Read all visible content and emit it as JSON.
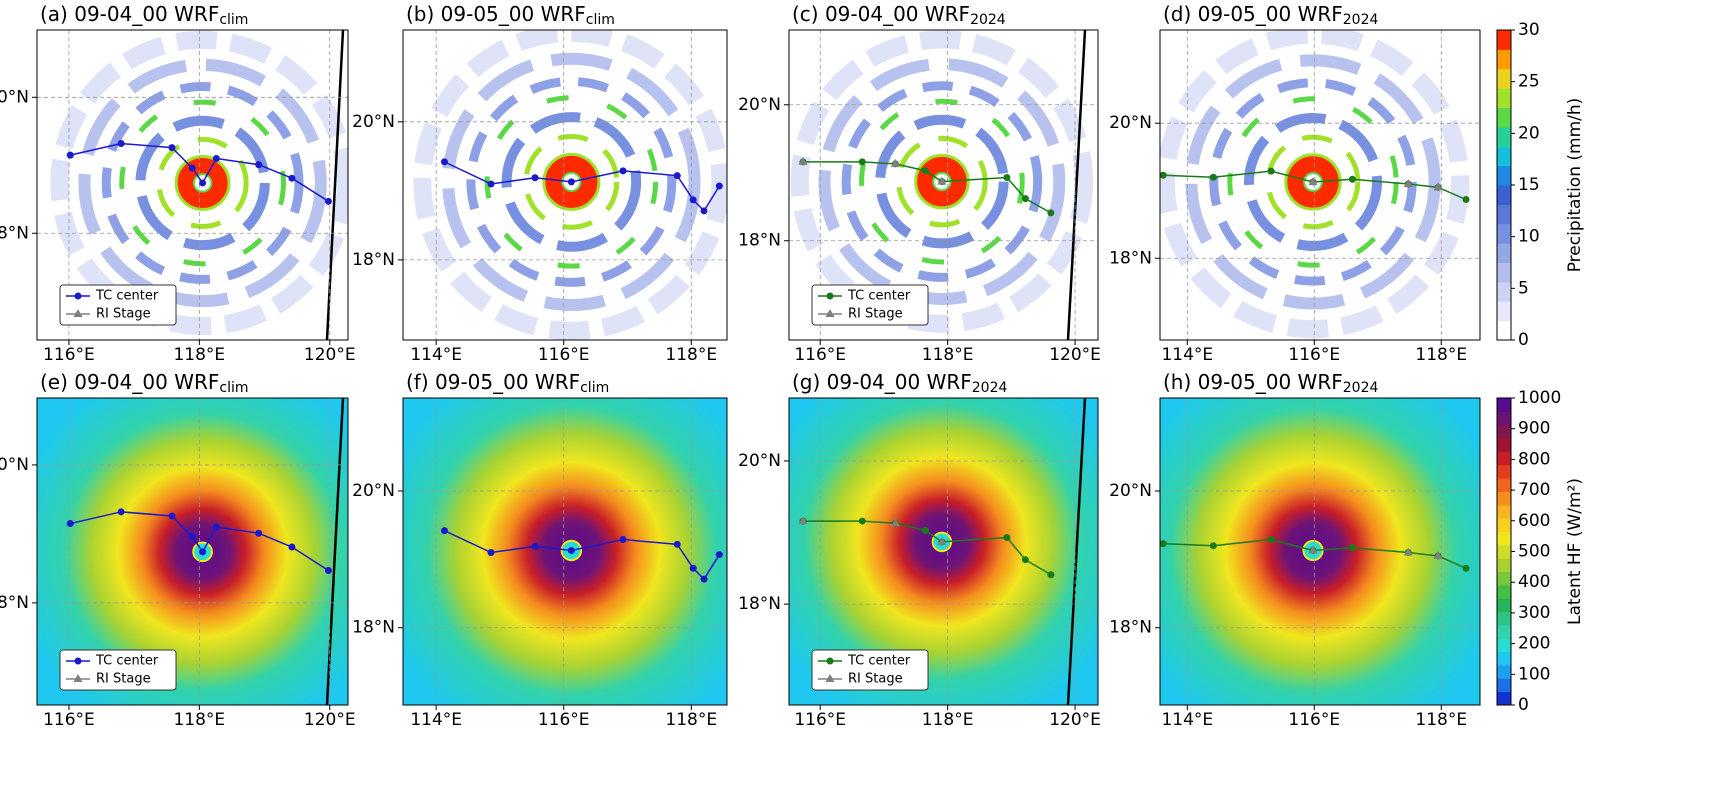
{
  "chart_data": [
    {
      "type": "map",
      "field": "precipitation",
      "title": "(a) 09-04_00 WRF",
      "title_sub": "clim",
      "xlim": [
        115.51,
        120.28
      ],
      "ylim": [
        16.43,
        20.99
      ],
      "xticks": [
        {
          "value": 116,
          "label": "116°E"
        },
        {
          "value": 118,
          "label": "118°E"
        },
        {
          "value": 120,
          "label": "120°E"
        }
      ],
      "yticks": [
        {
          "value": 18,
          "label": "18°N"
        },
        {
          "value": 20,
          "label": "20°N"
        }
      ],
      "grid": true,
      "legend": "lower left",
      "series": [
        {
          "name": "TC center",
          "color": "#1a1acc",
          "marker": "circle",
          "x": [
            116.02,
            116.8,
            117.58,
            117.89,
            118.05,
            118.26,
            118.91,
            119.42,
            119.98
          ],
          "values": [
            19.15,
            19.32,
            19.26,
            18.96,
            18.74,
            19.1,
            19.01,
            18.81,
            18.47
          ]
        },
        {
          "name": "RI Stage",
          "color": "#808080",
          "marker": "triangle",
          "x": [],
          "values": []
        }
      ]
    },
    {
      "type": "map",
      "field": "precipitation",
      "title": "(b) 09-05_00 WRF",
      "title_sub": "clim",
      "xlim": [
        113.48,
        118.56
      ],
      "ylim": [
        16.84,
        21.33
      ],
      "xticks": [
        {
          "value": 114,
          "label": "114°E"
        },
        {
          "value": 116,
          "label": "116°E"
        },
        {
          "value": 118,
          "label": "118°E"
        }
      ],
      "yticks": [
        {
          "value": 18,
          "label": "18°N"
        },
        {
          "value": 20,
          "label": "20°N"
        }
      ],
      "grid": true,
      "series": [
        {
          "color": "#1a1acc",
          "marker": "circle",
          "x": [
            114.13,
            114.86,
            115.55,
            116.12,
            116.93,
            117.78,
            118.03,
            118.2,
            118.44
          ],
          "values": [
            19.42,
            19.1,
            19.19,
            19.13,
            19.29,
            19.22,
            18.87,
            18.71,
            19.07
          ]
        }
      ]
    },
    {
      "type": "map",
      "field": "precipitation",
      "title": "(c) 09-04_00 WRF",
      "title_sub": "2024",
      "xlim": [
        115.51,
        120.36
      ],
      "ylim": [
        16.54,
        21.1
      ],
      "xticks": [
        {
          "value": 116,
          "label": "116°E"
        },
        {
          "value": 118,
          "label": "118°E"
        },
        {
          "value": 120,
          "label": "120°E"
        }
      ],
      "yticks": [
        {
          "value": 18,
          "label": "18°N"
        },
        {
          "value": 20,
          "label": "20°N"
        }
      ],
      "grid": true,
      "legend": "lower left",
      "series": [
        {
          "name": "TC center",
          "color": "#1a7a1a",
          "marker": "circle",
          "x": [
            115.73,
            116.66,
            117.18,
            117.65,
            117.91,
            118.93,
            119.22,
            119.62
          ],
          "values": [
            19.16,
            19.16,
            19.13,
            19.03,
            18.87,
            18.93,
            18.62,
            18.41
          ]
        },
        {
          "name": "RI Stage",
          "color": "#808080",
          "marker": "triangle",
          "x": [
            115.73,
            117.18,
            117.91
          ],
          "values": [
            19.16,
            19.13,
            18.87
          ]
        }
      ]
    },
    {
      "type": "map",
      "field": "precipitation",
      "title": "(d) 09-05_00 WRF",
      "title_sub": "2024",
      "xlim": [
        113.57,
        118.61
      ],
      "ylim": [
        16.79,
        21.38
      ],
      "xticks": [
        {
          "value": 114,
          "label": "114°E"
        },
        {
          "value": 116,
          "label": "116°E"
        },
        {
          "value": 118,
          "label": "118°E"
        }
      ],
      "yticks": [
        {
          "value": 18,
          "label": "18°N"
        },
        {
          "value": 20,
          "label": "20°N"
        }
      ],
      "grid": true,
      "series": [
        {
          "color": "#1a7a1a",
          "marker": "circle",
          "x": [
            113.62,
            114.41,
            115.32,
            115.98,
            116.6,
            117.48,
            117.95,
            118.39
          ],
          "values": [
            19.23,
            19.2,
            19.29,
            19.13,
            19.17,
            19.1,
            19.05,
            18.87
          ]
        },
        {
          "color": "#808080",
          "marker": "triangle",
          "x": [
            115.98,
            117.48,
            117.95
          ],
          "values": [
            19.13,
            19.1,
            19.05
          ]
        }
      ]
    },
    {
      "type": "map",
      "field": "latent_heat",
      "title": "(e) 09-04_00 WRF",
      "title_sub": "clim",
      "xlim": [
        115.51,
        120.28
      ],
      "ylim": [
        16.52,
        20.97
      ],
      "xticks": [
        {
          "value": 116,
          "label": "116°E"
        },
        {
          "value": 118,
          "label": "118°E"
        },
        {
          "value": 120,
          "label": "120°E"
        }
      ],
      "yticks": [
        {
          "value": 18,
          "label": "18°N"
        },
        {
          "value": 20,
          "label": "20°N"
        }
      ],
      "grid": true,
      "legend": "lower left",
      "series": [
        {
          "name": "TC center",
          "color": "#1a1acc",
          "marker": "circle",
          "x": [
            116.02,
            116.8,
            117.58,
            117.89,
            118.05,
            118.26,
            118.91,
            119.42,
            119.98
          ],
          "values": [
            19.15,
            19.32,
            19.26,
            18.96,
            18.74,
            19.1,
            19.01,
            18.81,
            18.47
          ]
        },
        {
          "name": "RI Stage",
          "color": "#808080",
          "marker": "triangle",
          "x": [],
          "values": []
        }
      ]
    },
    {
      "type": "map",
      "field": "latent_heat",
      "title": "(f) 09-05_00 WRF",
      "title_sub": "clim",
      "xlim": [
        113.48,
        118.56
      ],
      "ylim": [
        16.87,
        21.36
      ],
      "xticks": [
        {
          "value": 114,
          "label": "114°E"
        },
        {
          "value": 116,
          "label": "116°E"
        },
        {
          "value": 118,
          "label": "118°E"
        }
      ],
      "yticks": [
        {
          "value": 18,
          "label": "18°N"
        },
        {
          "value": 20,
          "label": "20°N"
        }
      ],
      "grid": true,
      "series": [
        {
          "color": "#1a1acc",
          "marker": "circle",
          "x": [
            114.13,
            114.86,
            115.55,
            116.12,
            116.93,
            117.78,
            118.03,
            118.2,
            118.44
          ],
          "values": [
            19.42,
            19.1,
            19.19,
            19.13,
            19.29,
            19.22,
            18.87,
            18.71,
            19.07
          ]
        }
      ]
    },
    {
      "type": "map",
      "field": "latent_heat",
      "title": "(g) 09-04_00 WRF",
      "title_sub": "2024",
      "xlim": [
        115.51,
        120.36
      ],
      "ylim": [
        16.59,
        20.88
      ],
      "xticks": [
        {
          "value": 116,
          "label": "116°E"
        },
        {
          "value": 118,
          "label": "118°E"
        },
        {
          "value": 120,
          "label": "120°E"
        }
      ],
      "yticks": [
        {
          "value": 18,
          "label": "18°N"
        },
        {
          "value": 20,
          "label": "20°N"
        }
      ],
      "grid": true,
      "legend": "lower left",
      "series": [
        {
          "name": "TC center",
          "color": "#1a7a1a",
          "marker": "circle",
          "x": [
            115.73,
            116.66,
            117.18,
            117.65,
            117.91,
            118.93,
            119.22,
            119.62
          ],
          "values": [
            19.16,
            19.16,
            19.13,
            19.03,
            18.87,
            18.93,
            18.62,
            18.41
          ]
        },
        {
          "name": "RI Stage",
          "color": "#808080",
          "marker": "triangle",
          "x": [
            115.73,
            117.18,
            117.91
          ],
          "values": [
            19.16,
            19.13,
            18.87
          ]
        }
      ]
    },
    {
      "type": "map",
      "field": "latent_heat",
      "title": "(h) 09-05_00 WRF",
      "title_sub": "2024",
      "xlim": [
        113.57,
        118.61
      ],
      "ylim": [
        16.87,
        21.36
      ],
      "xticks": [
        {
          "value": 114,
          "label": "114°E"
        },
        {
          "value": 116,
          "label": "116°E"
        },
        {
          "value": 118,
          "label": "118°E"
        }
      ],
      "yticks": [
        {
          "value": 18,
          "label": "18°N"
        },
        {
          "value": 20,
          "label": "20°N"
        }
      ],
      "grid": true,
      "series": [
        {
          "color": "#1a7a1a",
          "marker": "circle",
          "x": [
            113.62,
            114.41,
            115.32,
            115.98,
            116.6,
            117.48,
            117.95,
            118.39
          ],
          "values": [
            19.23,
            19.2,
            19.29,
            19.13,
            19.17,
            19.1,
            19.05,
            18.87
          ]
        },
        {
          "color": "#808080",
          "marker": "triangle",
          "x": [
            115.98,
            117.48,
            117.95
          ],
          "values": [
            19.13,
            19.1,
            19.05
          ]
        }
      ]
    },
    {
      "type": "colorbar",
      "label": "Precipitation (mm/h)",
      "ylim": [
        0,
        30
      ],
      "yticks": [
        0,
        5,
        10,
        15,
        20,
        25,
        30
      ],
      "colors": [
        "#ffffff",
        "#e8e8f8",
        "#ccd2f2",
        "#b0bcec",
        "#94a6e6",
        "#7890e0",
        "#5a78da",
        "#3a5fd2",
        "#1e8ae6",
        "#14c0dc",
        "#28d296",
        "#5ad846",
        "#a0e228",
        "#ead21e",
        "#ff9a00",
        "#ff2a00"
      ]
    },
    {
      "type": "colorbar",
      "label": "Latent HF (W/m²)",
      "ylim": [
        0,
        1000
      ],
      "yticks": [
        0,
        100,
        200,
        300,
        400,
        500,
        600,
        700,
        800,
        900,
        1000
      ],
      "colors": [
        "#1432d2",
        "#1e6ee6",
        "#1ea0f0",
        "#1ec8f0",
        "#28dcd2",
        "#32d2aa",
        "#2dc382",
        "#28b45a",
        "#46be46",
        "#78c83c",
        "#a8d232",
        "#d2dc28",
        "#f0e61e",
        "#fad21e",
        "#fab41e",
        "#f58c1e",
        "#f0641e",
        "#e63c1e",
        "#c81e28",
        "#a01432",
        "#821450",
        "#6e1478",
        "#5a0a8c"
      ]
    }
  ]
}
